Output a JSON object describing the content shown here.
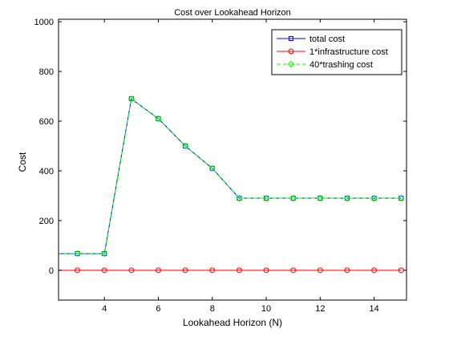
{
  "chart_data": {
    "type": "line",
    "title": "Cost over Lookahead Horizon",
    "xlabel": "Lookahead Horizon (N)",
    "ylabel": "Cost",
    "xlim": [
      2.3,
      15.2
    ],
    "ylim": [
      -120,
      1010
    ],
    "xticks": [
      4,
      6,
      8,
      10,
      12,
      14
    ],
    "yticks": [
      0,
      200,
      400,
      600,
      800,
      1000
    ],
    "grid": false,
    "legend_position": "top-right",
    "x": [
      2,
      3,
      4,
      5,
      6,
      7,
      8,
      9,
      10,
      11,
      12,
      13,
      14,
      15
    ],
    "series": [
      {
        "name": "total cost",
        "color": "#0000ff",
        "marker": "square",
        "line_style": "solid",
        "values": [
          67,
          67,
          67,
          690,
          610,
          500,
          410,
          290,
          290,
          290,
          290,
          290,
          290,
          290
        ]
      },
      {
        "name": "1*infrastructure cost",
        "color": "#ff0000",
        "marker": "circle",
        "line_style": "solid",
        "values": [
          0,
          0,
          0,
          0,
          0,
          0,
          0,
          0,
          0,
          0,
          0,
          0,
          0,
          0
        ]
      },
      {
        "name": "40*trashing cost",
        "color": "#00ff00",
        "marker": "diamond",
        "line_style": "dashed",
        "values": [
          67,
          67,
          67,
          690,
          610,
          500,
          410,
          290,
          290,
          290,
          290,
          290,
          290,
          290
        ]
      }
    ]
  }
}
